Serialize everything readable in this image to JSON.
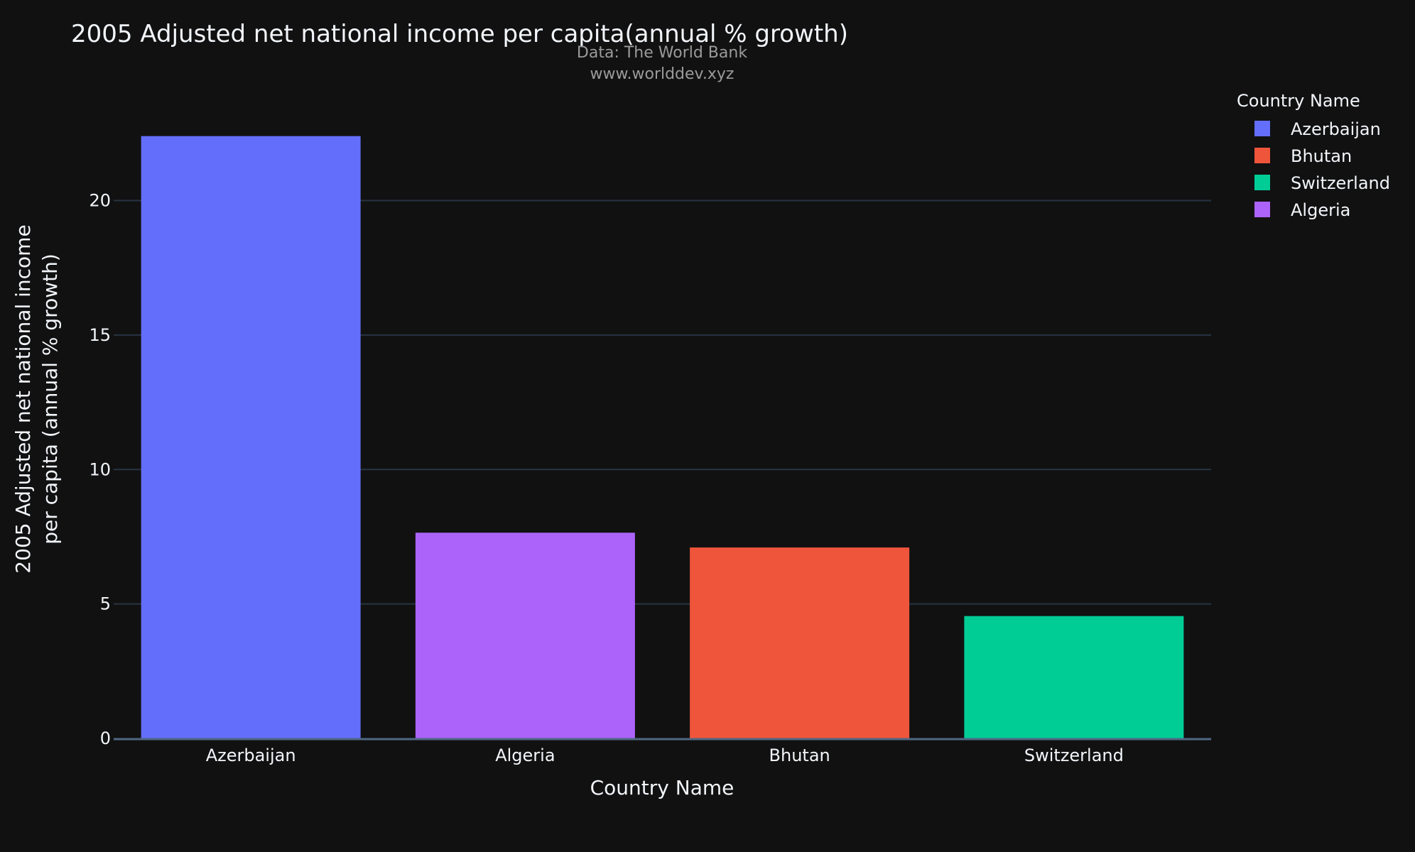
{
  "chart_data": {
    "type": "bar",
    "title": "2005 Adjusted net national income per capita(annual % growth)",
    "subtitle_lines": [
      "Data: The World Bank",
      "www.worlddev.xyz"
    ],
    "xlabel": "Country Name",
    "ylabel_lines": [
      "2005 Adjusted net national income",
      "per capita (annual % growth)"
    ],
    "categories": [
      "Azerbaijan",
      "Algeria",
      "Bhutan",
      "Switzerland"
    ],
    "values": [
      22.4,
      7.65,
      7.1,
      4.55
    ],
    "bar_colors": [
      "#636efa",
      "#ab63fa",
      "#ef553b",
      "#00cc96"
    ],
    "ylim": [
      0,
      23.5
    ],
    "yticks": [
      0,
      5,
      10,
      15,
      20
    ],
    "grid": true,
    "legend": {
      "title": "Country Name",
      "placement": "top-right",
      "items": [
        {
          "label": "Azerbaijan",
          "color": "#636efa"
        },
        {
          "label": "Bhutan",
          "color": "#ef553b"
        },
        {
          "label": "Switzerland",
          "color": "#00cc96"
        },
        {
          "label": "Algeria",
          "color": "#ab63fa"
        }
      ]
    }
  }
}
